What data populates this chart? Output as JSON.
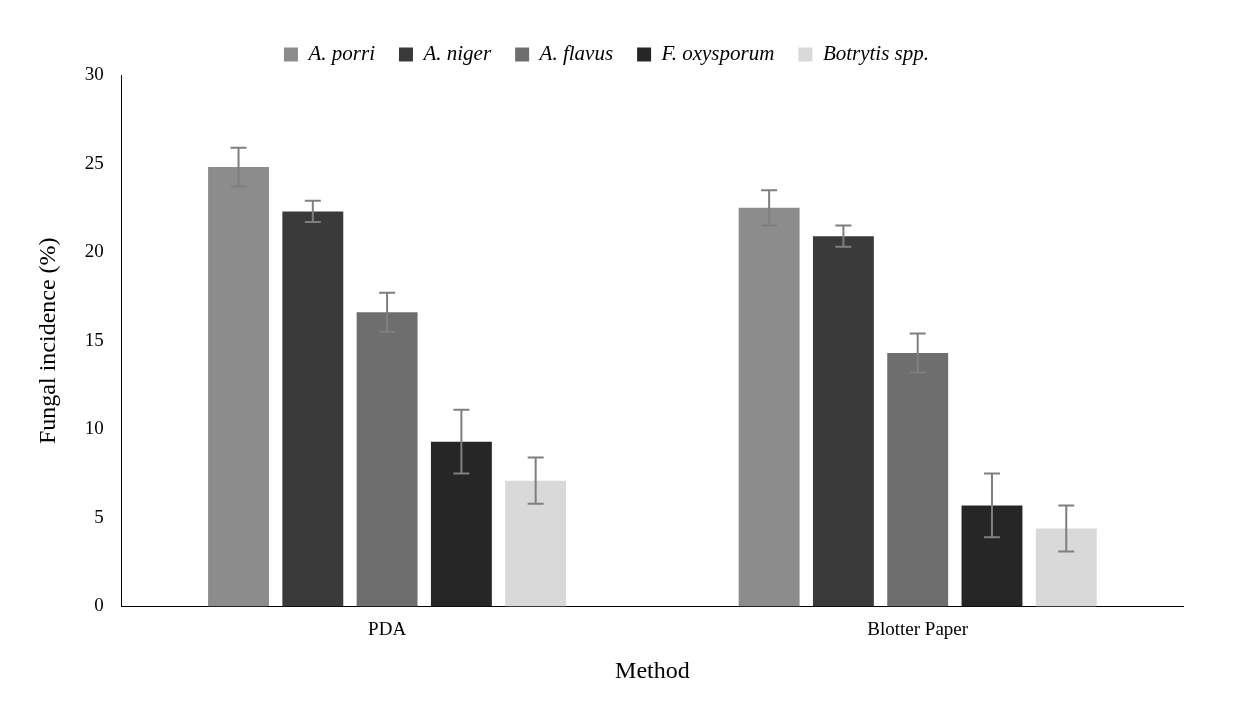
{
  "chart_data": {
    "type": "bar",
    "xlabel": "Method",
    "ylabel": "Fungal incidence (%)",
    "categories": [
      "PDA",
      "Blotter Paper"
    ],
    "series": [
      {
        "name": "A. porri",
        "color": "#8c8c8c",
        "values": [
          24.8,
          22.5
        ],
        "errors": [
          1.1,
          1.0
        ]
      },
      {
        "name": "A. niger",
        "color": "#3a3a3a",
        "values": [
          22.3,
          20.9
        ],
        "errors": [
          0.6,
          0.6
        ]
      },
      {
        "name": "A. flavus",
        "color": "#6e6e6e",
        "values": [
          16.6,
          14.3
        ],
        "errors": [
          1.1,
          1.1
        ]
      },
      {
        "name": "F. oxysporum",
        "color": "#262626",
        "values": [
          9.3,
          5.7
        ],
        "errors": [
          1.8,
          1.8
        ]
      },
      {
        "name": "Botrytis spp.",
        "color": "#d9d9d9",
        "values": [
          7.1,
          4.4
        ],
        "errors": [
          1.3,
          1.3
        ]
      }
    ],
    "ylim": [
      0,
      30
    ],
    "yticks": [
      0,
      5,
      10,
      15,
      20,
      25,
      30
    ],
    "grid": false,
    "legend": "top"
  }
}
